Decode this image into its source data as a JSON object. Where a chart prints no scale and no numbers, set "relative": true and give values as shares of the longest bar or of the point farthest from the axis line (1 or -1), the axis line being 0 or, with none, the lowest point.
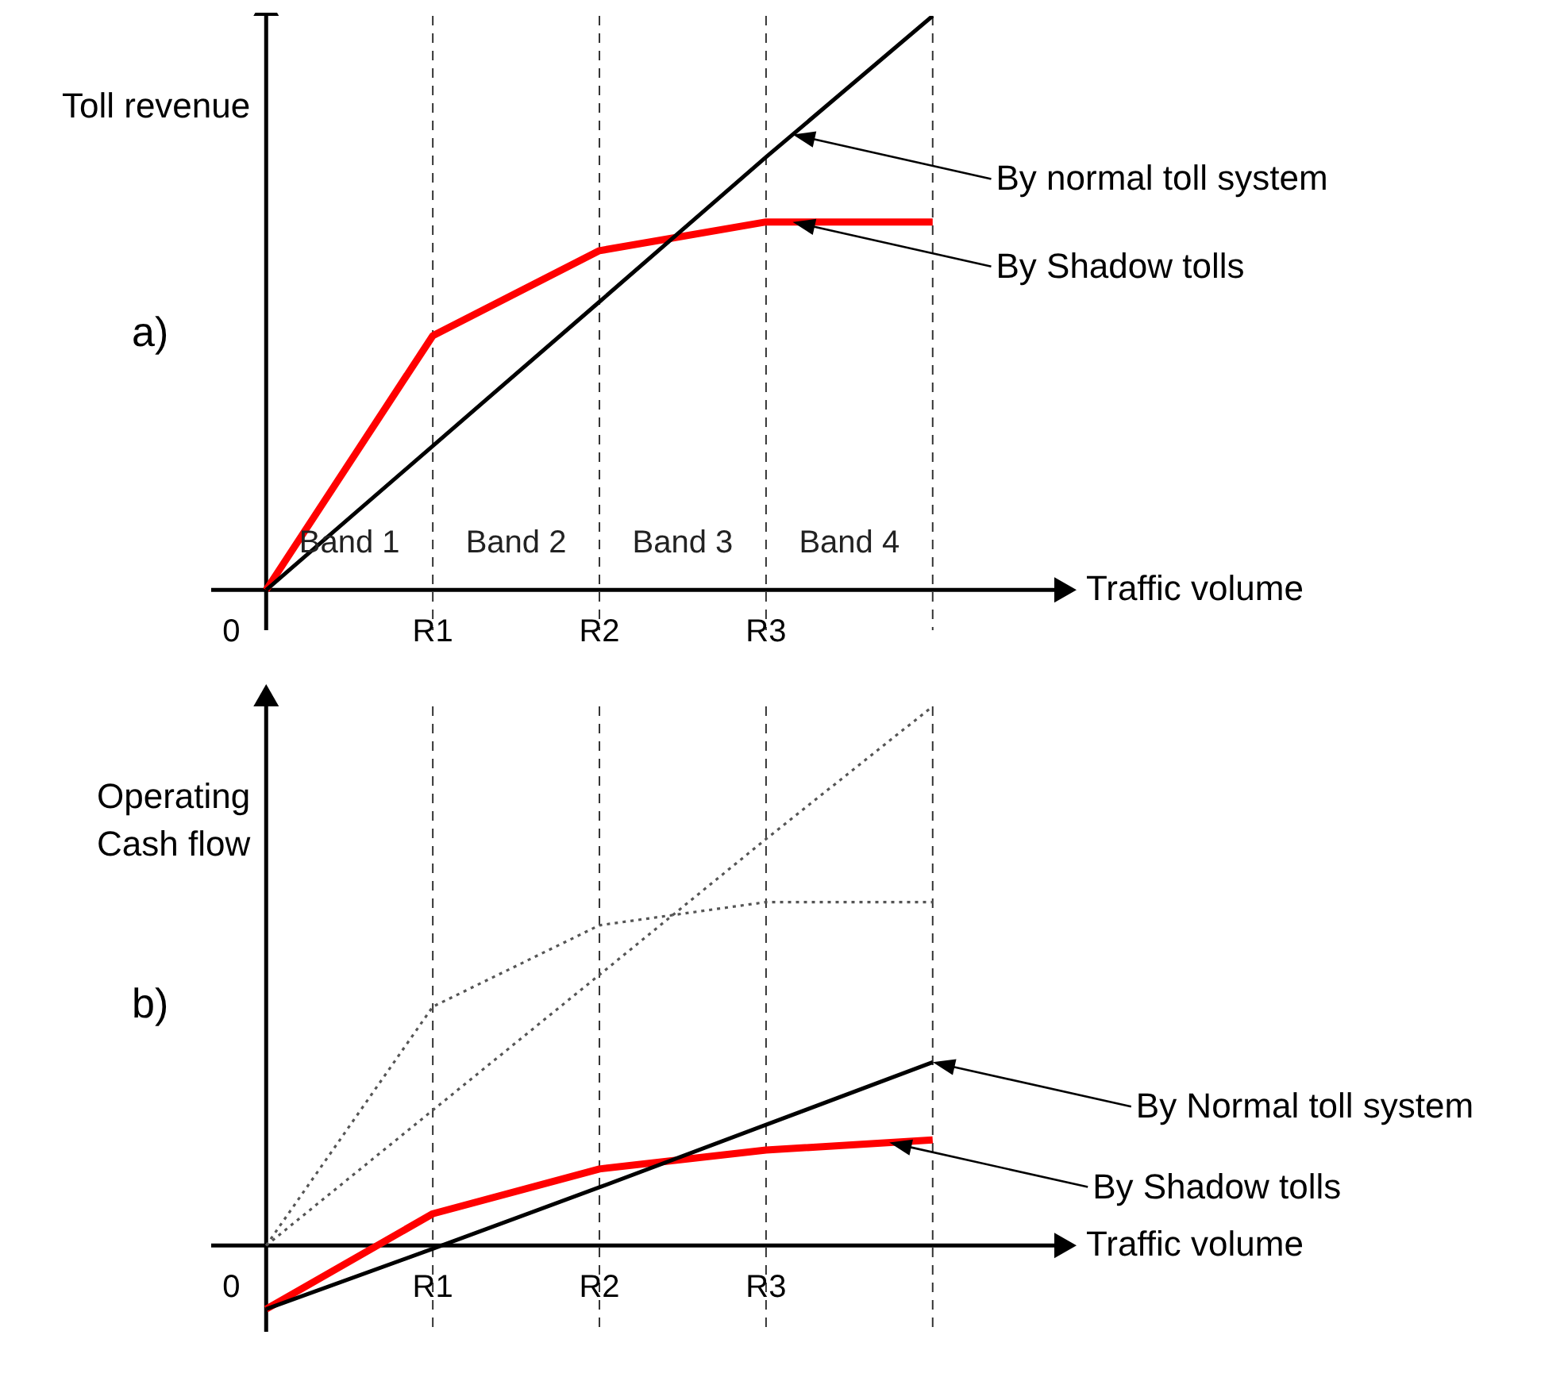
{
  "chart_data": [
    {
      "type": "line",
      "relative": true,
      "xlabel": "Traffic volume",
      "ylabel": "Toll revenue",
      "grid": "x",
      "line_style": "solid",
      "categories": [
        "0",
        "R1",
        "R2",
        "R3",
        null
      ],
      "ref_lines": [
        {
          "axis": "x",
          "value": "0",
          "color": "#000000",
          "line_style": "solid"
        }
      ],
      "annotations": [
        "a)",
        "Band 1",
        "Band 2",
        "Band 3",
        "Band 4",
        "By normal toll system",
        "By Shadow tolls"
      ],
      "series": [
        {
          "color": "#ff0000",
          "values": [
            0,
            0.443,
            0.591,
            0.641,
            0.641
          ]
        },
        {
          "color": "#000000",
          "values": [
            0,
            0.251,
            0.502,
            0.754,
            1
          ]
        }
      ]
    },
    {
      "type": "line",
      "relative": true,
      "xlabel": "Traffic volume",
      "ylabel": "Operating Cash flow",
      "grid": "x",
      "line_style": "solid",
      "categories": [
        "0",
        "R1",
        "R2",
        "R3",
        null
      ],
      "ref_lines": [
        {
          "axis": "x",
          "value": "0",
          "color": "#000000",
          "line_style": "solid"
        }
      ],
      "annotations": [
        "b)",
        "By Normal toll system",
        "By Shadow tolls"
      ],
      "series": [
        {
          "color": "#555555",
          "line_style": "dotted",
          "values": [
            0,
            0.443,
            0.594,
            0.637,
            0.637
          ]
        },
        {
          "color": "#555555",
          "line_style": "dotted",
          "values": [
            0,
            0.251,
            0.502,
            0.754,
            1
          ]
        },
        {
          "color": "#ff0000",
          "values": [
            -0.118,
            0.059,
            0.142,
            0.177,
            0.196
          ]
        },
        {
          "color": "#000000",
          "values": [
            -0.118,
            -0.006,
            0.108,
            0.224,
            0.34
          ]
        }
      ]
    }
  ]
}
